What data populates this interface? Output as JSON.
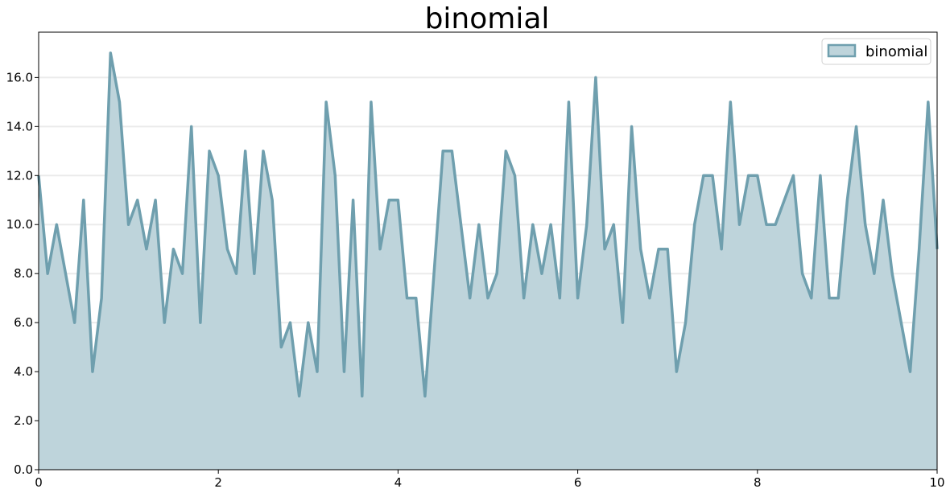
{
  "chart_data": {
    "type": "area",
    "title": "binomial",
    "xlabel": "",
    "ylabel": "",
    "xlim": [
      0,
      10
    ],
    "ylim": [
      0,
      17.85
    ],
    "x_ticks": [
      {
        "value": 0,
        "label": "0"
      },
      {
        "value": 2,
        "label": "2"
      },
      {
        "value": 4,
        "label": "4"
      },
      {
        "value": 6,
        "label": "6"
      },
      {
        "value": 8,
        "label": "8"
      },
      {
        "value": 10,
        "label": "10"
      }
    ],
    "y_ticks": [
      {
        "value": 0,
        "label": "0.0"
      },
      {
        "value": 2,
        "label": "2.0"
      },
      {
        "value": 4,
        "label": "4.0"
      },
      {
        "value": 6,
        "label": "6.0"
      },
      {
        "value": 8,
        "label": "8.0"
      },
      {
        "value": 10,
        "label": "10.0"
      },
      {
        "value": 12,
        "label": "12.0"
      },
      {
        "value": 14,
        "label": "14.0"
      },
      {
        "value": 16,
        "label": "16.0"
      }
    ],
    "grid": "horizontal",
    "legend_position": "top-right",
    "series": [
      {
        "name": "binomial",
        "color": "#6f9fae",
        "fill": "#bed4db",
        "x": [
          0.0,
          0.1,
          0.2,
          0.3,
          0.4,
          0.5,
          0.6,
          0.7,
          0.8,
          0.9,
          1.0,
          1.1,
          1.2,
          1.3,
          1.4,
          1.5,
          1.6,
          1.7,
          1.8,
          1.9,
          2.0,
          2.1,
          2.2,
          2.3,
          2.4,
          2.5,
          2.6,
          2.7,
          2.8,
          2.9,
          3.0,
          3.1,
          3.2,
          3.3,
          3.4,
          3.5,
          3.6,
          3.7,
          3.8,
          3.9,
          4.0,
          4.1,
          4.2,
          4.3,
          4.4,
          4.5,
          4.6,
          4.7,
          4.8,
          4.9,
          5.0,
          5.1,
          5.2,
          5.3,
          5.4,
          5.5,
          5.6,
          5.7,
          5.8,
          5.9,
          6.0,
          6.1,
          6.2,
          6.3,
          6.4,
          6.5,
          6.6,
          6.7,
          6.8,
          6.9,
          7.0,
          7.1,
          7.2,
          7.3,
          7.4,
          7.5,
          7.6,
          7.7,
          7.8,
          7.9,
          8.0,
          8.1,
          8.2,
          8.3,
          8.4,
          8.5,
          8.6,
          8.7,
          8.8,
          8.9,
          9.0,
          9.1,
          9.2,
          9.3,
          9.4,
          9.5,
          9.6,
          9.7,
          9.8,
          9.9,
          10.0
        ],
        "values": [
          12,
          8,
          10,
          8,
          6,
          11,
          4,
          7,
          17,
          15,
          10,
          11,
          9,
          11,
          6,
          9,
          8,
          14,
          6,
          13,
          12,
          9,
          8,
          13,
          8,
          13,
          11,
          5,
          6,
          3,
          6,
          4,
          15,
          12,
          4,
          11,
          3,
          15,
          9,
          11,
          11,
          7,
          7,
          3,
          8,
          13,
          13,
          10,
          7,
          10,
          7,
          8,
          13,
          12,
          7,
          10,
          8,
          10,
          7,
          15,
          7,
          10,
          16,
          9,
          10,
          6,
          14,
          9,
          7,
          9,
          9,
          4,
          6,
          10,
          12,
          12,
          9,
          15,
          10,
          12,
          12,
          10,
          10,
          11,
          12,
          8,
          7,
          12,
          7,
          7,
          11,
          14,
          10,
          8,
          11,
          8,
          6,
          4,
          9,
          15,
          9
        ]
      }
    ]
  }
}
